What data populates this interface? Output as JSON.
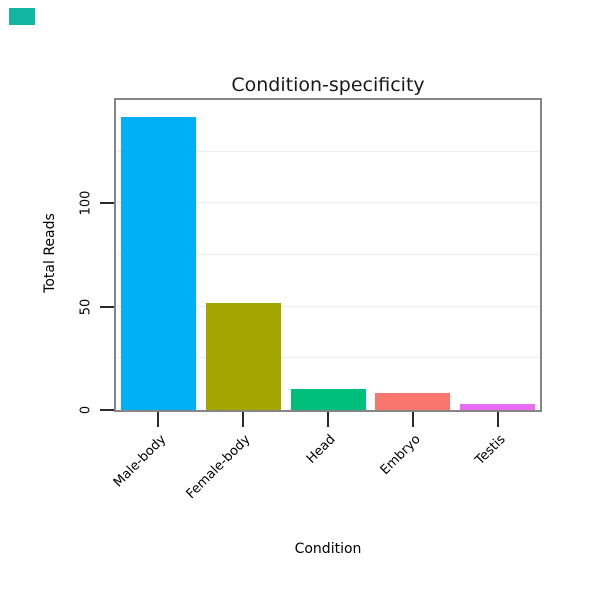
{
  "corner_badge": {
    "color": "#12b5a0"
  },
  "chart_data": {
    "type": "bar",
    "title": "Condition-specificity",
    "xlabel": "Condition",
    "ylabel": "Total Reads",
    "categories": [
      "Male-body",
      "Female-body",
      "Head",
      "Embryo",
      "Testis"
    ],
    "values": [
      142,
      52,
      10,
      8,
      3
    ],
    "colors": [
      "#00B0F6",
      "#A3A500",
      "#00BF7D",
      "#F8766D",
      "#E76BF3"
    ],
    "ylim": [
      0,
      150
    ],
    "yticks": [
      0,
      50,
      100
    ],
    "ytick_labels": [
      "0",
      "50",
      "100"
    ],
    "grid_values": [
      25,
      50,
      75,
      100,
      125
    ],
    "grid": "faint horizontal gridlines",
    "legend": "none",
    "style": {
      "panel_border": "#858585",
      "grid_color": "#ececec",
      "tick_color": "#2b2b2b",
      "background": "#ffffff"
    }
  }
}
